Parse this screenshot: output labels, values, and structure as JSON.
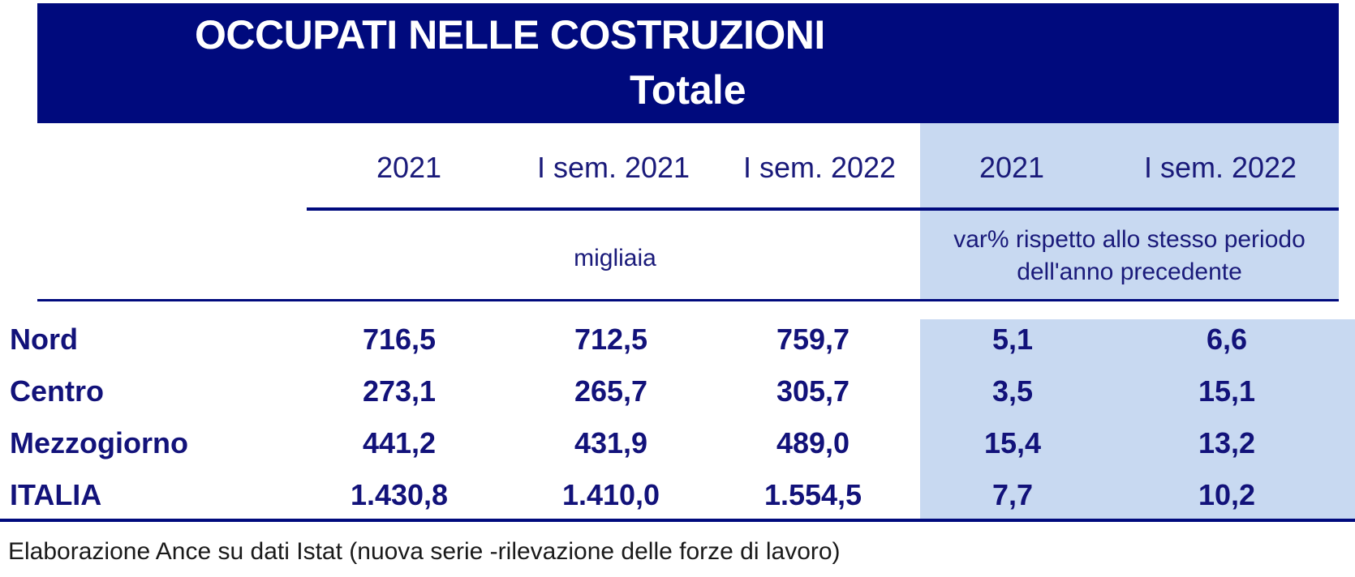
{
  "chart_data": {
    "type": "table",
    "title_line1": "OCCUPATI NELLE COSTRUZIONI",
    "title_line2": "Totale",
    "columns": [
      "2021",
      "I sem. 2021",
      "I sem. 2022",
      "2021",
      "I sem. 2022"
    ],
    "unit_levels": "migliaia",
    "unit_change_line1": "var% rispetto allo stesso periodo",
    "unit_change_line2": "dell'anno precedente",
    "rows": [
      {
        "label": "Nord",
        "values": [
          "716,5",
          "712,5",
          "759,7",
          "5,1",
          "6,6"
        ]
      },
      {
        "label": "Centro",
        "values": [
          "273,1",
          "265,7",
          "305,7",
          "3,5",
          "15,1"
        ]
      },
      {
        "label": "Mezzogiorno",
        "values": [
          "441,2",
          "431,9",
          "489,0",
          "15,4",
          "13,2"
        ]
      },
      {
        "label": "ITALIA",
        "values": [
          "1.430,8",
          "1.410,0",
          "1.554,5",
          "7,7",
          "10,2"
        ]
      }
    ],
    "source": "Elaborazione Ance su dati Istat (nuova serie -rilevazione delle forze di lavoro)"
  },
  "colors": {
    "banner": "#000a7d",
    "highlight": "#c8d9f1",
    "text": "#12127a"
  }
}
